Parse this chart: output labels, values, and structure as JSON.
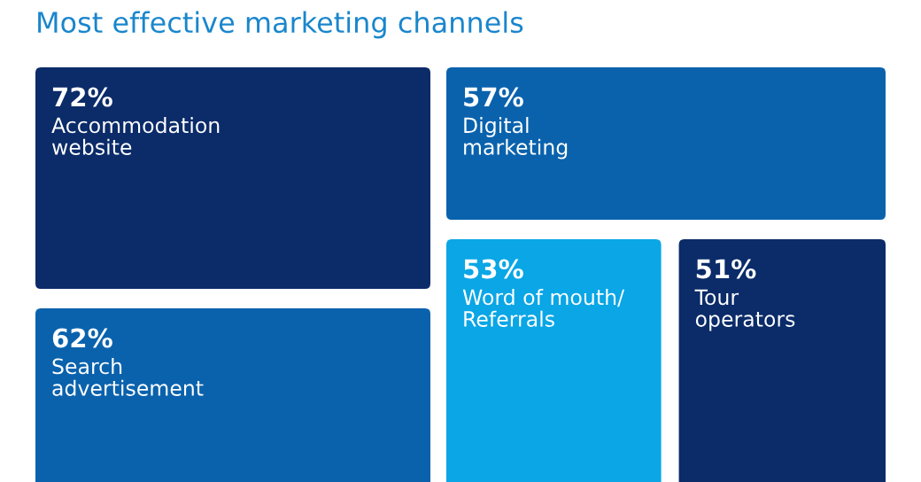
{
  "chart_data": {
    "type": "other",
    "title": "Most effective marketing channels",
    "categories": [
      "Accommodation\nwebsite",
      "Search\nadvertisement",
      "Digital\nmarketing",
      "Word of mouth/\nReferrals",
      "Tour\noperators"
    ],
    "values": [
      72,
      62,
      57,
      53,
      51
    ],
    "value_labels": [
      "72%",
      "62%",
      "57%",
      "53%",
      "51%"
    ],
    "colors": [
      "#0b2b69",
      "#0a62ad",
      "#0a62ad",
      "#0aa6e6",
      "#0b2b69"
    ]
  }
}
